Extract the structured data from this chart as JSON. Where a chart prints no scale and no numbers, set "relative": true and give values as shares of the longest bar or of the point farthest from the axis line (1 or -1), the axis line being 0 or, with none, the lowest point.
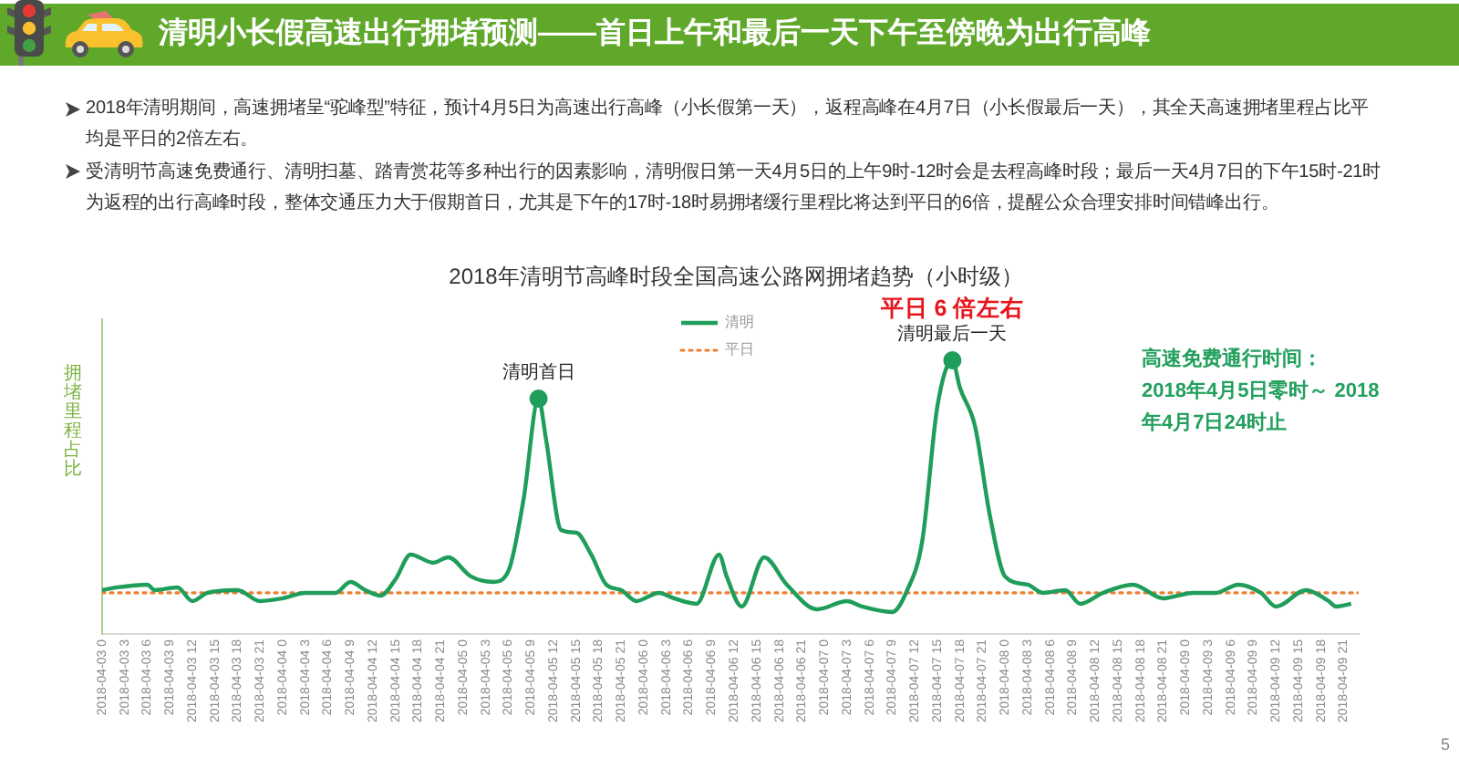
{
  "chart_data": {
    "type": "line",
    "title": "清明小长假高速出行拥堵预测——首日上午和最后一天下午至傍晚为出行高峰",
    "subtitle": "2018年清明节高峰时段全国高速公路网拥堵趋势（小时级）",
    "ylabel": "拥堵里程占比",
    "relative": true,
    "xlim": [
      "2018-04-03T00:00",
      "2018-04-09T23:00"
    ],
    "xticks": [
      {
        "value": "2018-04-03T00:00",
        "label": "2018-04-03 0"
      },
      {
        "value": "2018-04-03T03:00",
        "label": "2018-04-03 3"
      },
      {
        "value": "2018-04-03T06:00",
        "label": "2018-04-03 6"
      },
      {
        "value": "2018-04-03T09:00",
        "label": "2018-04-03 9"
      },
      {
        "value": "2018-04-03T12:00",
        "label": "2018-04-03 12"
      },
      {
        "value": "2018-04-03T15:00",
        "label": "2018-04-03 15"
      },
      {
        "value": "2018-04-03T18:00",
        "label": "2018-04-03 18"
      },
      {
        "value": "2018-04-03T21:00",
        "label": "2018-04-03 21"
      },
      {
        "value": "2018-04-04T00:00",
        "label": "2018-04-04 0"
      },
      {
        "value": "2018-04-04T03:00",
        "label": "2018-04-04 3"
      },
      {
        "value": "2018-04-04T06:00",
        "label": "2018-04-04 6"
      },
      {
        "value": "2018-04-04T09:00",
        "label": "2018-04-04 9"
      },
      {
        "value": "2018-04-04T12:00",
        "label": "2018-04-04 12"
      },
      {
        "value": "2018-04-04T15:00",
        "label": "2018-04-04 15"
      },
      {
        "value": "2018-04-04T18:00",
        "label": "2018-04-04 18"
      },
      {
        "value": "2018-04-04T21:00",
        "label": "2018-04-04 21"
      },
      {
        "value": "2018-04-05T00:00",
        "label": "2018-04-05 0"
      },
      {
        "value": "2018-04-05T03:00",
        "label": "2018-04-05 3"
      },
      {
        "value": "2018-04-05T06:00",
        "label": "2018-04-05 6"
      },
      {
        "value": "2018-04-05T09:00",
        "label": "2018-04-05 9"
      },
      {
        "value": "2018-04-05T12:00",
        "label": "2018-04-05 12"
      },
      {
        "value": "2018-04-05T15:00",
        "label": "2018-04-05 15"
      },
      {
        "value": "2018-04-05T18:00",
        "label": "2018-04-05 18"
      },
      {
        "value": "2018-04-05T21:00",
        "label": "2018-04-05 21"
      },
      {
        "value": "2018-04-06T00:00",
        "label": "2018-04-06 0"
      },
      {
        "value": "2018-04-06T03:00",
        "label": "2018-04-06 3"
      },
      {
        "value": "2018-04-06T06:00",
        "label": "2018-04-06 6"
      },
      {
        "value": "2018-04-06T09:00",
        "label": "2018-04-06 9"
      },
      {
        "value": "2018-04-06T12:00",
        "label": "2018-04-06 12"
      },
      {
        "value": "2018-04-06T15:00",
        "label": "2018-04-06 15"
      },
      {
        "value": "2018-04-06T18:00",
        "label": "2018-04-06 18"
      },
      {
        "value": "2018-04-06T21:00",
        "label": "2018-04-06 21"
      },
      {
        "value": "2018-04-07T00:00",
        "label": "2018-04-07 0"
      },
      {
        "value": "2018-04-07T03:00",
        "label": "2018-04-07 3"
      },
      {
        "value": "2018-04-07T06:00",
        "label": "2018-04-07 6"
      },
      {
        "value": "2018-04-07T09:00",
        "label": "2018-04-07 9"
      },
      {
        "value": "2018-04-07T12:00",
        "label": "2018-04-07 12"
      },
      {
        "value": "2018-04-07T15:00",
        "label": "2018-04-07 15"
      },
      {
        "value": "2018-04-07T18:00",
        "label": "2018-04-07 18"
      },
      {
        "value": "2018-04-07T21:00",
        "label": "2018-04-07 21"
      },
      {
        "value": "2018-04-08T00:00",
        "label": "2018-04-08 0"
      },
      {
        "value": "2018-04-08T03:00",
        "label": "2018-04-08 3"
      },
      {
        "value": "2018-04-08T06:00",
        "label": "2018-04-08 6"
      },
      {
        "value": "2018-04-08T09:00",
        "label": "2018-04-08 9"
      },
      {
        "value": "2018-04-08T12:00",
        "label": "2018-04-08 12"
      },
      {
        "value": "2018-04-08T15:00",
        "label": "2018-04-08 15"
      },
      {
        "value": "2018-04-08T18:00",
        "label": "2018-04-08 18"
      },
      {
        "value": "2018-04-08T21:00",
        "label": "2018-04-08 21"
      },
      {
        "value": "2018-04-09T00:00",
        "label": "2018-04-09 0"
      },
      {
        "value": "2018-04-09T03:00",
        "label": "2018-04-09 3"
      },
      {
        "value": "2018-04-09T06:00",
        "label": "2018-04-09 6"
      },
      {
        "value": "2018-04-09T09:00",
        "label": "2018-04-09 9"
      },
      {
        "value": "2018-04-09T12:00",
        "label": "2018-04-09 12"
      },
      {
        "value": "2018-04-09T15:00",
        "label": "2018-04-09 15"
      },
      {
        "value": "2018-04-09T18:00",
        "label": "2018-04-09 18"
      },
      {
        "value": "2018-04-09T21:00",
        "label": "2018-04-09 21"
      }
    ],
    "series": [
      {
        "name": "清明",
        "color": "#1f9d5a",
        "x": [
          "2018-04-03T00:00",
          "2018-04-03T02:00",
          "2018-04-03T06:00",
          "2018-04-03T07:00",
          "2018-04-03T10:00",
          "2018-04-03T12:00",
          "2018-04-03T14:00",
          "2018-04-03T18:00",
          "2018-04-03T21:00",
          "2018-04-04T00:00",
          "2018-04-04T03:00",
          "2018-04-04T07:00",
          "2018-04-04T09:00",
          "2018-04-04T11:00",
          "2018-04-04T13:00",
          "2018-04-04T15:00",
          "2018-04-04T17:00",
          "2018-04-04T20:00",
          "2018-04-04T22:00",
          "2018-04-05T01:00",
          "2018-04-05T04:00",
          "2018-04-05T06:00",
          "2018-04-05T08:00",
          "2018-04-05T10:00",
          "2018-04-05T11:00",
          "2018-04-05T13:00",
          "2018-04-05T15:00",
          "2018-04-05T17:00",
          "2018-04-05T19:00",
          "2018-04-05T21:00",
          "2018-04-05T23:00",
          "2018-04-06T02:00",
          "2018-04-06T04:00",
          "2018-04-06T07:00",
          "2018-04-06T10:00",
          "2018-04-06T11:00",
          "2018-04-06T13:00",
          "2018-04-06T16:00",
          "2018-04-06T19:00",
          "2018-04-06T23:00",
          "2018-04-07T03:00",
          "2018-04-07T05:00",
          "2018-04-07T09:00",
          "2018-04-07T11:00",
          "2018-04-07T13:00",
          "2018-04-07T15:00",
          "2018-04-07T17:00",
          "2018-04-07T18:00",
          "2018-04-07T20:00",
          "2018-04-07T22:00",
          "2018-04-08T00:00",
          "2018-04-08T03:00",
          "2018-04-08T05:00",
          "2018-04-08T08:00",
          "2018-04-08T10:00",
          "2018-04-08T13:00",
          "2018-04-08T17:00",
          "2018-04-08T21:00",
          "2018-04-09T01:00",
          "2018-04-09T04:00",
          "2018-04-09T07:00",
          "2018-04-09T10:00",
          "2018-04-09T12:00",
          "2018-04-09T16:00",
          "2018-04-09T19:00",
          "2018-04-09T20:00",
          "2018-04-09T22:00"
        ],
        "values": [
          0.16,
          0.17,
          0.18,
          0.16,
          0.17,
          0.12,
          0.15,
          0.16,
          0.12,
          0.13,
          0.15,
          0.15,
          0.19,
          0.16,
          0.14,
          0.2,
          0.29,
          0.26,
          0.28,
          0.21,
          0.19,
          0.23,
          0.49,
          0.86,
          0.71,
          0.38,
          0.37,
          0.29,
          0.18,
          0.16,
          0.12,
          0.15,
          0.13,
          0.11,
          0.29,
          0.21,
          0.1,
          0.28,
          0.18,
          0.09,
          0.12,
          0.1,
          0.08,
          0.16,
          0.34,
          0.83,
          1,
          0.9,
          0.76,
          0.43,
          0.21,
          0.18,
          0.15,
          0.16,
          0.11,
          0.15,
          0.18,
          0.13,
          0.15,
          0.15,
          0.18,
          0.15,
          0.1,
          0.16,
          0.12,
          0.1,
          0.11
        ]
      },
      {
        "name": "平日",
        "color": "#ed7d31",
        "line_style": "dotted",
        "x": [
          "2018-04-03T00:00",
          "2018-04-09T23:00"
        ],
        "values": [
          0.15,
          0.15
        ]
      },
      {
        "type": "scatter",
        "color": "#1f9d5a",
        "marker": "circle",
        "x": [
          "2018-04-05T10:00",
          "2018-04-07T17:00"
        ],
        "values": [
          0.86,
          1
        ]
      }
    ],
    "marker": "none",
    "grid": false,
    "legend": "top",
    "tick_labels": "x",
    "annotations": [
      "2018年清明期间，高速拥堵呈“驼峰型”特征，预计4月5日为高速出行高峰（小长假第一天），返程高峰在4月7日（小长假最后一天），其全天高速拥堵里程占比平均是平日的2倍左右。",
      "受清明节高速免费通行、清明扫墓、踏青赏花等多种出行的因素影响，清明假日第一天4月5日的上午9时-12时会是去程高峰时段；最后一天4月7日的下午15时-21时为返程的出行高峰时段，整体交通压力大于假期首日，尤其是下午的17时-18时易拥堵缓行里程比将达到平日的6倍，提醒公众合理安排时间错峰出行。",
      "高速免费通行时间：\n2018年4月5日零时～ 2018年4月7日24时止",
      "5",
      {
        "text": "清明首日",
        "x": "2018-04-05T10:00",
        "y": 0.86
      },
      {
        "text": "清明最后一天",
        "x": "2018-04-07T17:00",
        "y": 1
      },
      {
        "text": "平日 6 倍左右",
        "x": "2018-04-07T17:00",
        "y": 1
      }
    ]
  }
}
